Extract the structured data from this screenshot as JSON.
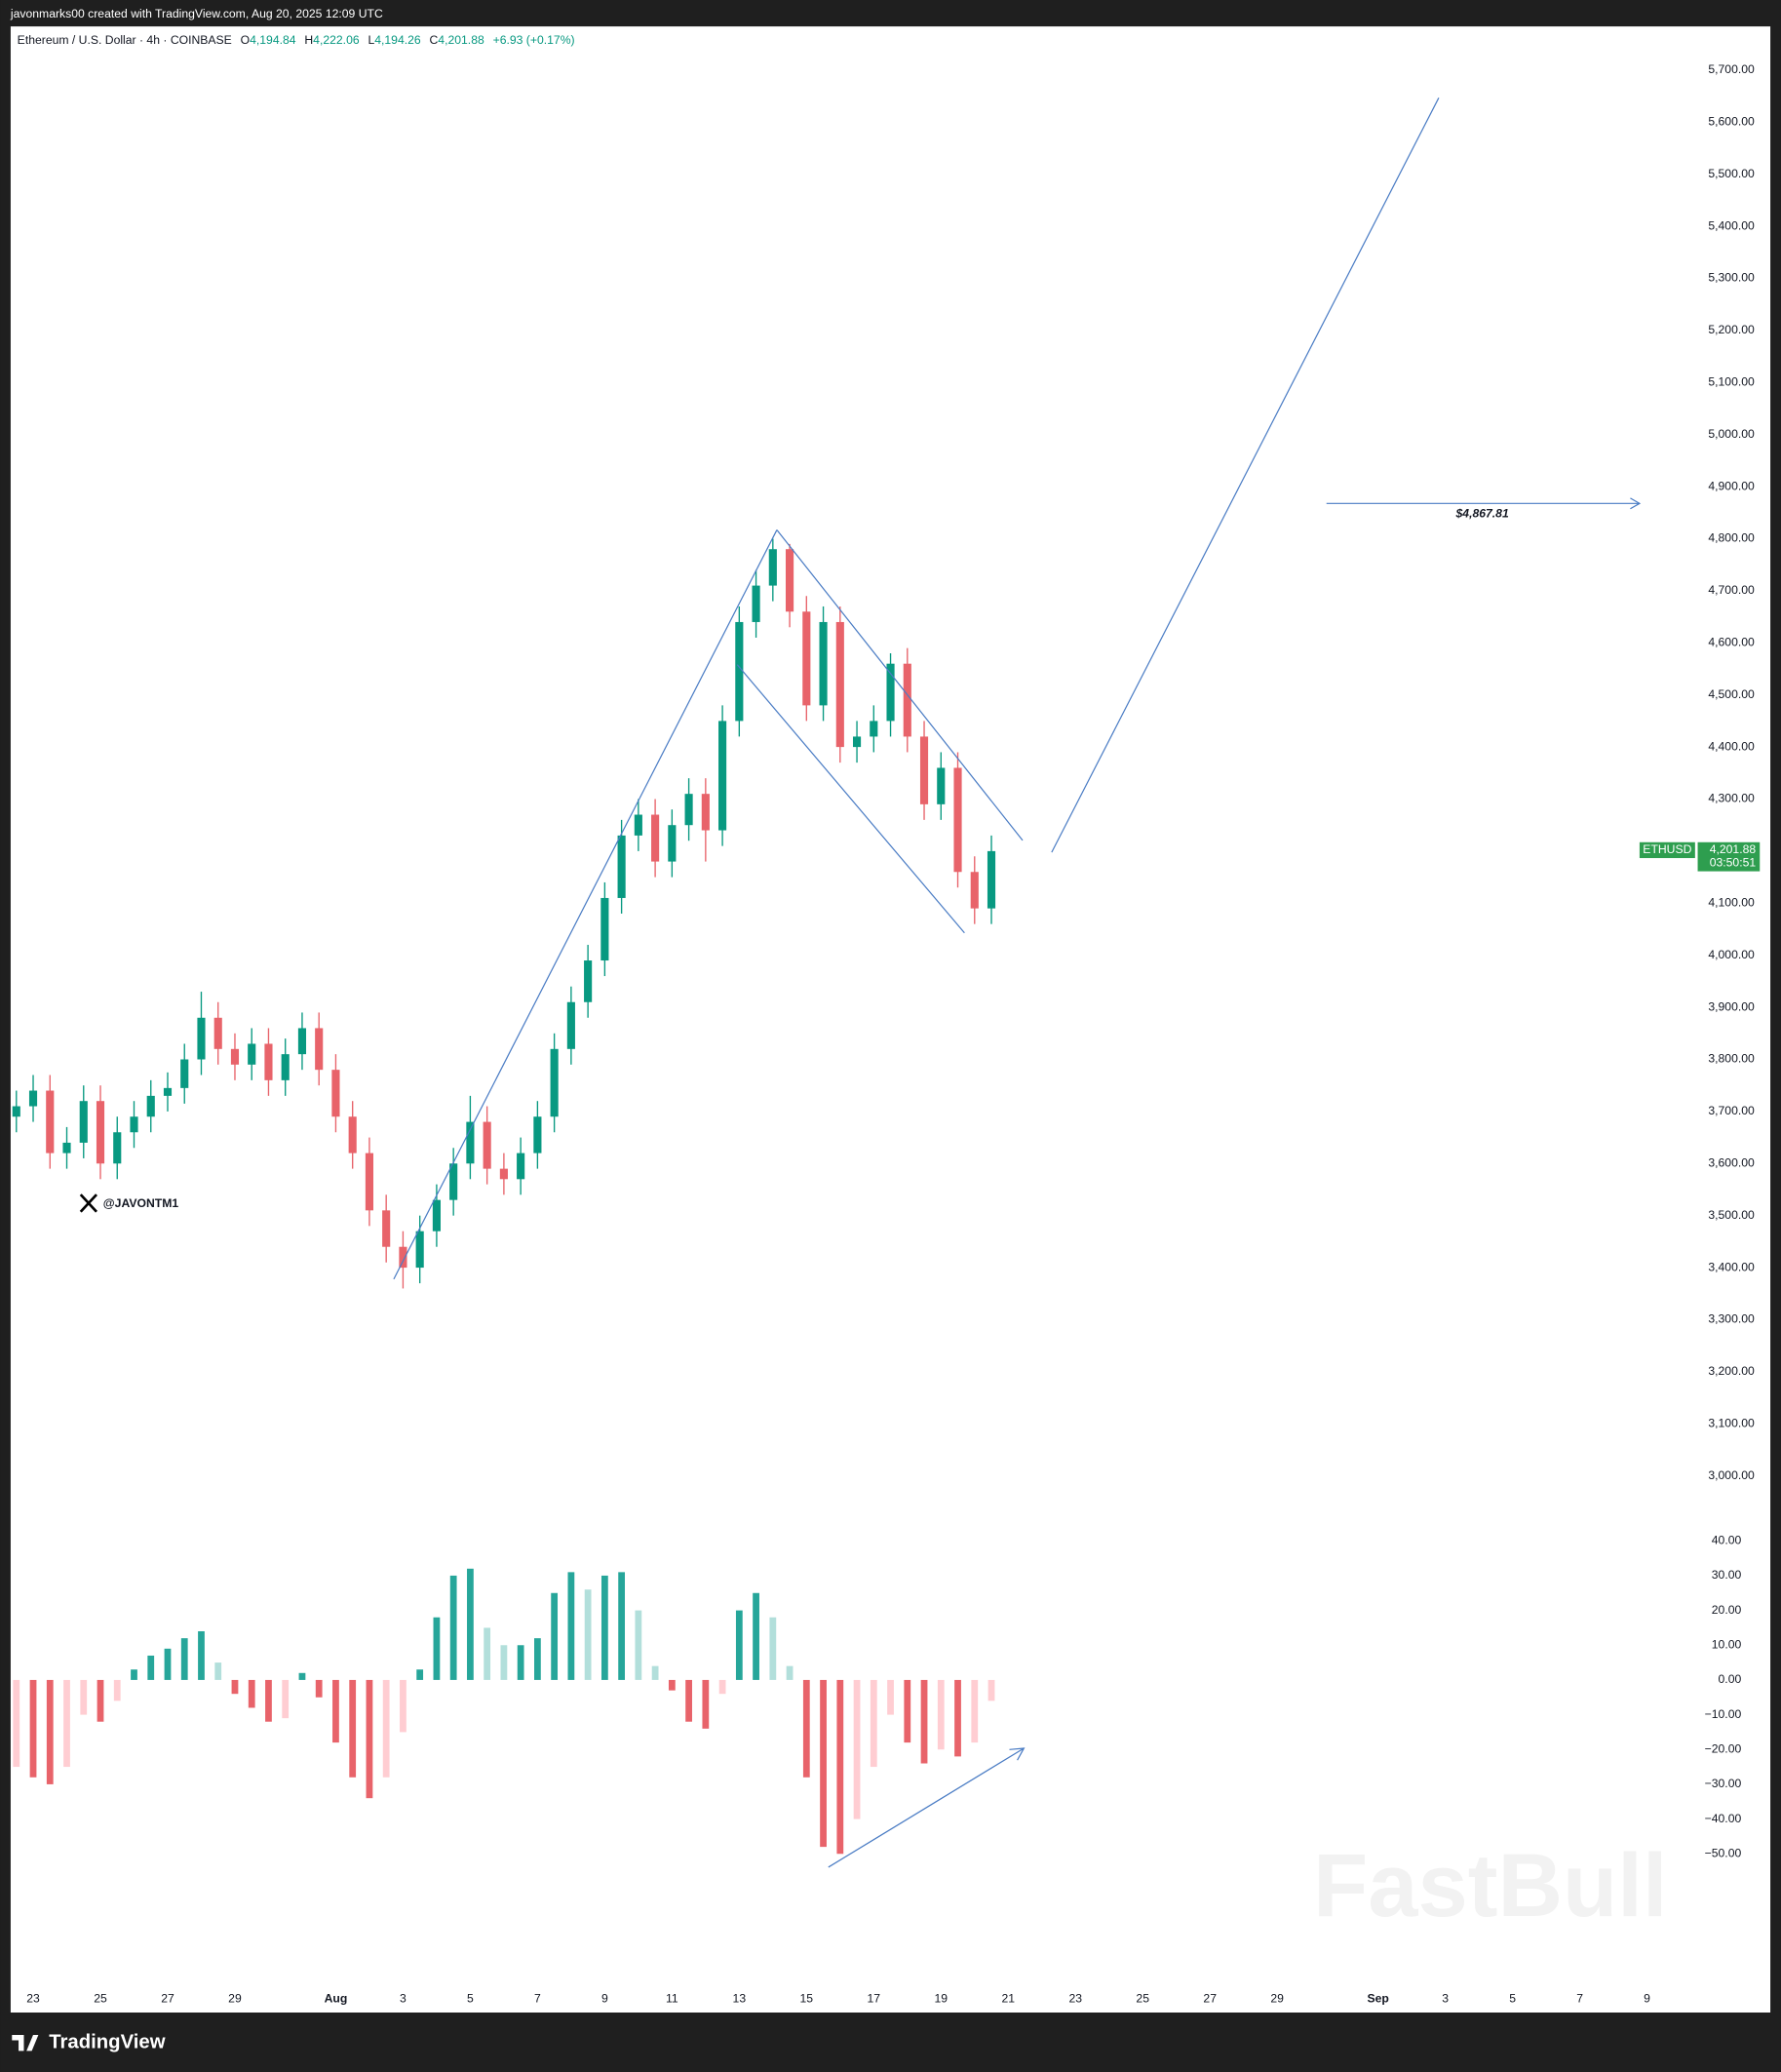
{
  "header": {
    "attribution": "javonmarks00 created with TradingView.com, Aug 20, 2025 12:09 UTC",
    "ohlc": [
      {
        "key": "O",
        "value": "4,194.84"
      },
      {
        "key": "H",
        "value": "4,222.06"
      },
      {
        "key": "L",
        "value": "4,194.26"
      },
      {
        "key": "C",
        "value": "4,201.88"
      }
    ],
    "change": "+6.93 (+0.17%)"
  },
  "watermark": "@JAVONTM1",
  "brand_watermark": "FastBull",
  "footer": {
    "logo": "TradingView"
  },
  "chart_data": [
    {
      "type": "candlestick",
      "title": "Ethereum / U.S. Dollar · 4h · COINBASE",
      "up_color": "#089981",
      "down_color": "#e8636a",
      "x": [
        22.5,
        23,
        23.5,
        24,
        24.5,
        25,
        25.5,
        26,
        26.5,
        27,
        27.5,
        28,
        28.5,
        29,
        29.5,
        30,
        30.5,
        31,
        31.5,
        32,
        32.5,
        33,
        33.5,
        34,
        34.5,
        35,
        35.5,
        36,
        36.5,
        37,
        37.5,
        38,
        38.5,
        39,
        39.5,
        40,
        40.5,
        41,
        41.5,
        42,
        42.5,
        43,
        43.5,
        44,
        44.5,
        45,
        45.5,
        46,
        46.5,
        47,
        47.5,
        48,
        48.5,
        49,
        49.5,
        50,
        50.5,
        51,
        51.5
      ],
      "open": [
        3690,
        3710,
        3740,
        3620,
        3640,
        3720,
        3600,
        3660,
        3690,
        3730,
        3745,
        3800,
        3880,
        3820,
        3790,
        3830,
        3760,
        3810,
        3860,
        3780,
        3690,
        3620,
        3510,
        3440,
        3400,
        3470,
        3530,
        3600,
        3680,
        3590,
        3570,
        3620,
        3690,
        3820,
        3910,
        3990,
        4110,
        4230,
        4270,
        4180,
        4250,
        4310,
        4240,
        4450,
        4640,
        4710,
        4780,
        4660,
        4480,
        4640,
        4400,
        4420,
        4450,
        4560,
        4420,
        4290,
        4360,
        4160,
        4090
      ],
      "high": [
        3740,
        3770,
        3770,
        3670,
        3750,
        3750,
        3690,
        3720,
        3760,
        3775,
        3830,
        3930,
        3910,
        3850,
        3860,
        3860,
        3840,
        3890,
        3890,
        3810,
        3720,
        3650,
        3540,
        3470,
        3500,
        3560,
        3630,
        3730,
        3710,
        3620,
        3650,
        3720,
        3850,
        3940,
        4020,
        4140,
        4260,
        4300,
        4300,
        4280,
        4340,
        4340,
        4480,
        4670,
        4740,
        4800,
        4790,
        4690,
        4670,
        4670,
        4450,
        4480,
        4580,
        4590,
        4450,
        4390,
        4390,
        4190,
        4230
      ],
      "low": [
        3660,
        3680,
        3590,
        3590,
        3610,
        3570,
        3570,
        3630,
        3660,
        3700,
        3715,
        3770,
        3790,
        3760,
        3760,
        3730,
        3730,
        3780,
        3750,
        3660,
        3590,
        3480,
        3410,
        3360,
        3370,
        3440,
        3500,
        3570,
        3560,
        3540,
        3540,
        3590,
        3660,
        3790,
        3880,
        3960,
        4080,
        4200,
        4150,
        4150,
        4220,
        4180,
        4210,
        4420,
        4610,
        4680,
        4630,
        4450,
        4450,
        4370,
        4370,
        4390,
        4420,
        4390,
        4260,
        4260,
        4130,
        4060,
        4060
      ],
      "close": [
        3710,
        3740,
        3620,
        3640,
        3720,
        3600,
        3660,
        3690,
        3730,
        3745,
        3800,
        3880,
        3820,
        3790,
        3830,
        3760,
        3810,
        3860,
        3780,
        3690,
        3620,
        3510,
        3440,
        3400,
        3470,
        3530,
        3600,
        3680,
        3590,
        3570,
        3620,
        3690,
        3820,
        3910,
        3990,
        4110,
        4230,
        4270,
        4180,
        4250,
        4310,
        4240,
        4450,
        4640,
        4710,
        4780,
        4660,
        4480,
        4640,
        4400,
        4420,
        4450,
        4560,
        4420,
        4290,
        4360,
        4160,
        4090,
        4200
      ],
      "xlim": [
        22.33,
        72.31
      ],
      "xticks": [
        23,
        25,
        27,
        29,
        {
          "value": 32,
          "label": "Aug"
        },
        {
          "value": 34,
          "label": "3"
        },
        {
          "value": 36,
          "label": "5"
        },
        {
          "value": 38,
          "label": "7"
        },
        {
          "value": 40,
          "label": "9"
        },
        {
          "value": 42,
          "label": "11"
        },
        {
          "value": 44,
          "label": "13"
        },
        {
          "value": 46,
          "label": "15"
        },
        {
          "value": 48,
          "label": "17"
        },
        {
          "value": 50,
          "label": "19"
        },
        {
          "value": 52,
          "label": "21"
        },
        {
          "value": 54,
          "label": "23"
        },
        {
          "value": 56,
          "label": "25"
        },
        {
          "value": 58,
          "label": "27"
        },
        {
          "value": 60,
          "label": "29"
        },
        {
          "value": 63,
          "label": "Sep"
        },
        {
          "value": 65,
          "label": "3"
        },
        {
          "value": 67,
          "label": "5"
        },
        {
          "value": 69,
          "label": "7"
        },
        {
          "value": 71,
          "label": "9"
        }
      ],
      "ylim": [
        2916,
        5784
      ],
      "yticks": [
        {
          "value": 5700,
          "label": "5,700.00"
        },
        {
          "value": 5600,
          "label": "5,600.00"
        },
        {
          "value": 5500,
          "label": "5,500.00"
        },
        {
          "value": 5400,
          "label": "5,400.00"
        },
        {
          "value": 5300,
          "label": "5,300.00"
        },
        {
          "value": 5200,
          "label": "5,200.00"
        },
        {
          "value": 5100,
          "label": "5,100.00"
        },
        {
          "value": 5000,
          "label": "5,000.00"
        },
        {
          "value": 4900,
          "label": "4,900.00"
        },
        {
          "value": 4800,
          "label": "4,800.00"
        },
        {
          "value": 4700,
          "label": "4,700.00"
        },
        {
          "value": 4600,
          "label": "4,600.00"
        },
        {
          "value": 4500,
          "label": "4,500.00"
        },
        {
          "value": 4400,
          "label": "4,400.00"
        },
        {
          "value": 4300,
          "label": "4,300.00"
        },
        {
          "value": 4200,
          "label": "4,200.00"
        },
        {
          "value": 4100,
          "label": "4,100.00"
        },
        {
          "value": 4000,
          "label": "4,000.00"
        },
        {
          "value": 3900,
          "label": "3,900.00"
        },
        {
          "value": 3800,
          "label": "3,800.00"
        },
        {
          "value": 3700,
          "label": "3,700.00"
        },
        {
          "value": 3600,
          "label": "3,600.00"
        },
        {
          "value": 3500,
          "label": "3,500.00"
        },
        {
          "value": 3400,
          "label": "3,400.00"
        },
        {
          "value": 3300,
          "label": "3,300.00"
        },
        {
          "value": 3200,
          "label": "3,200.00"
        },
        {
          "value": 3100,
          "label": "3,100.00"
        },
        {
          "value": 3000,
          "label": "3,000.00"
        }
      ],
      "target": {
        "value": 4867.81,
        "label": "$4,867.81"
      },
      "last_price": {
        "symbol": "ETHUSD",
        "value": 4201.88,
        "label": "4,201.88",
        "countdown": "03:50:51"
      }
    },
    {
      "type": "histogram",
      "colors": {
        "rising_above": "#26a69a",
        "falling_above": "#b2dfdb",
        "rising_below": "#ffcdd2",
        "falling_below": "#e8636a"
      },
      "values": [
        -25,
        -28,
        -30,
        -25,
        -10,
        -12,
        -6,
        3,
        7,
        9,
        12,
        14,
        5,
        -4,
        -8,
        -12,
        -11,
        2,
        -5,
        -18,
        -28,
        -34,
        -28,
        -15,
        3,
        18,
        30,
        32,
        15,
        10,
        10,
        12,
        25,
        31,
        26,
        30,
        31,
        20,
        4,
        -3,
        -12,
        -14,
        -4,
        20,
        25,
        18,
        4,
        -28,
        -48,
        -50,
        -40,
        -25,
        -10,
        -18,
        -24,
        -20,
        -22,
        -18,
        -6
      ],
      "ylim": [
        -85,
        46.1
      ],
      "yticks": [
        {
          "value": 40,
          "label": "40.00"
        },
        {
          "value": 30,
          "label": "30.00"
        },
        {
          "value": 20,
          "label": "20.00"
        },
        {
          "value": 10,
          "label": "10.00"
        },
        {
          "value": 0,
          "label": "0.00"
        },
        {
          "value": -10,
          "label": "−10.00"
        },
        {
          "value": -20,
          "label": "−20.00"
        },
        {
          "value": -30,
          "label": "−30.00"
        },
        {
          "value": -40,
          "label": "−40.00"
        },
        {
          "value": -50,
          "label": "−50.00"
        }
      ]
    }
  ]
}
